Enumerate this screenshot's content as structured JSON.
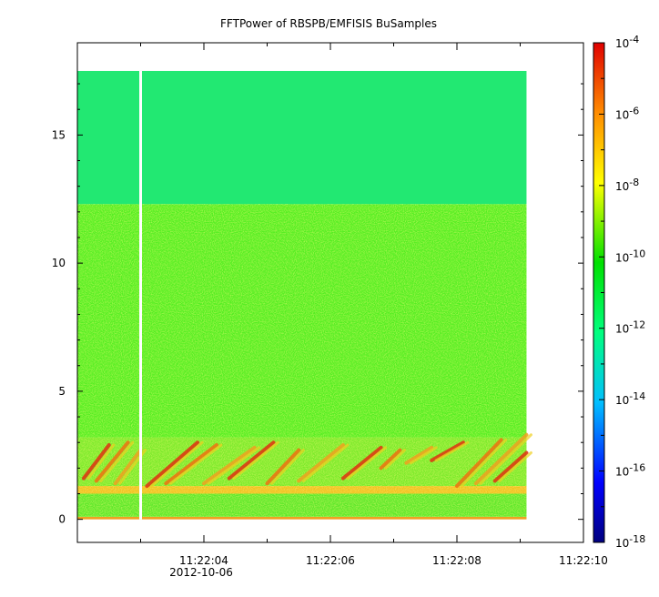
{
  "chart_data": {
    "type": "heatmap",
    "title": "FFTPower of RBSPB/EMFISIS  BuSamples",
    "xlabel": "",
    "ylabel": "",
    "date_label": "2012-10-06",
    "x_ticks": [
      "11:22:04",
      "11:22:06",
      "11:22:08",
      "11:22:10"
    ],
    "x_range": [
      "11:22:02.0",
      "11:22:10.0"
    ],
    "data_time_range": [
      "11:22:02.0",
      "11:22:09.1"
    ],
    "data_gap_time": "11:22:03.0",
    "y_ticks": [
      0,
      5,
      10,
      15
    ],
    "y_range": [
      -0.9,
      18.6
    ],
    "frequency_max": 17.5,
    "colorbar": {
      "scale": "log",
      "range": [
        1e-18,
        0.0001
      ],
      "tick_bases": [
        "10",
        "10",
        "10",
        "10",
        "10",
        "10",
        "10",
        "10"
      ],
      "tick_exponents": [
        "-18",
        "-16",
        "-14",
        "-12",
        "-10",
        "-8",
        "-6",
        "-4"
      ],
      "colormap": [
        "#00007f",
        "#0000ff",
        "#00bfff",
        "#00ff7f",
        "#00e000",
        "#ffff00",
        "#ff8c00",
        "#e00000"
      ]
    },
    "grid": false,
    "bands": [
      {
        "y_range": [
          12.3,
          17.5
        ],
        "log_power": -12.3,
        "description_color": "#22e872"
      },
      {
        "y_range": [
          3.2,
          12.3
        ],
        "log_power": -10.5,
        "description_color": "#55ee22"
      },
      {
        "y_range": [
          1.0,
          1.3
        ],
        "log_power": -7.5,
        "description_color": "#f0c020"
      },
      {
        "y_range": [
          0.0,
          0.1
        ],
        "log_power": -7.5,
        "description_color": "#f0a020"
      }
    ]
  }
}
